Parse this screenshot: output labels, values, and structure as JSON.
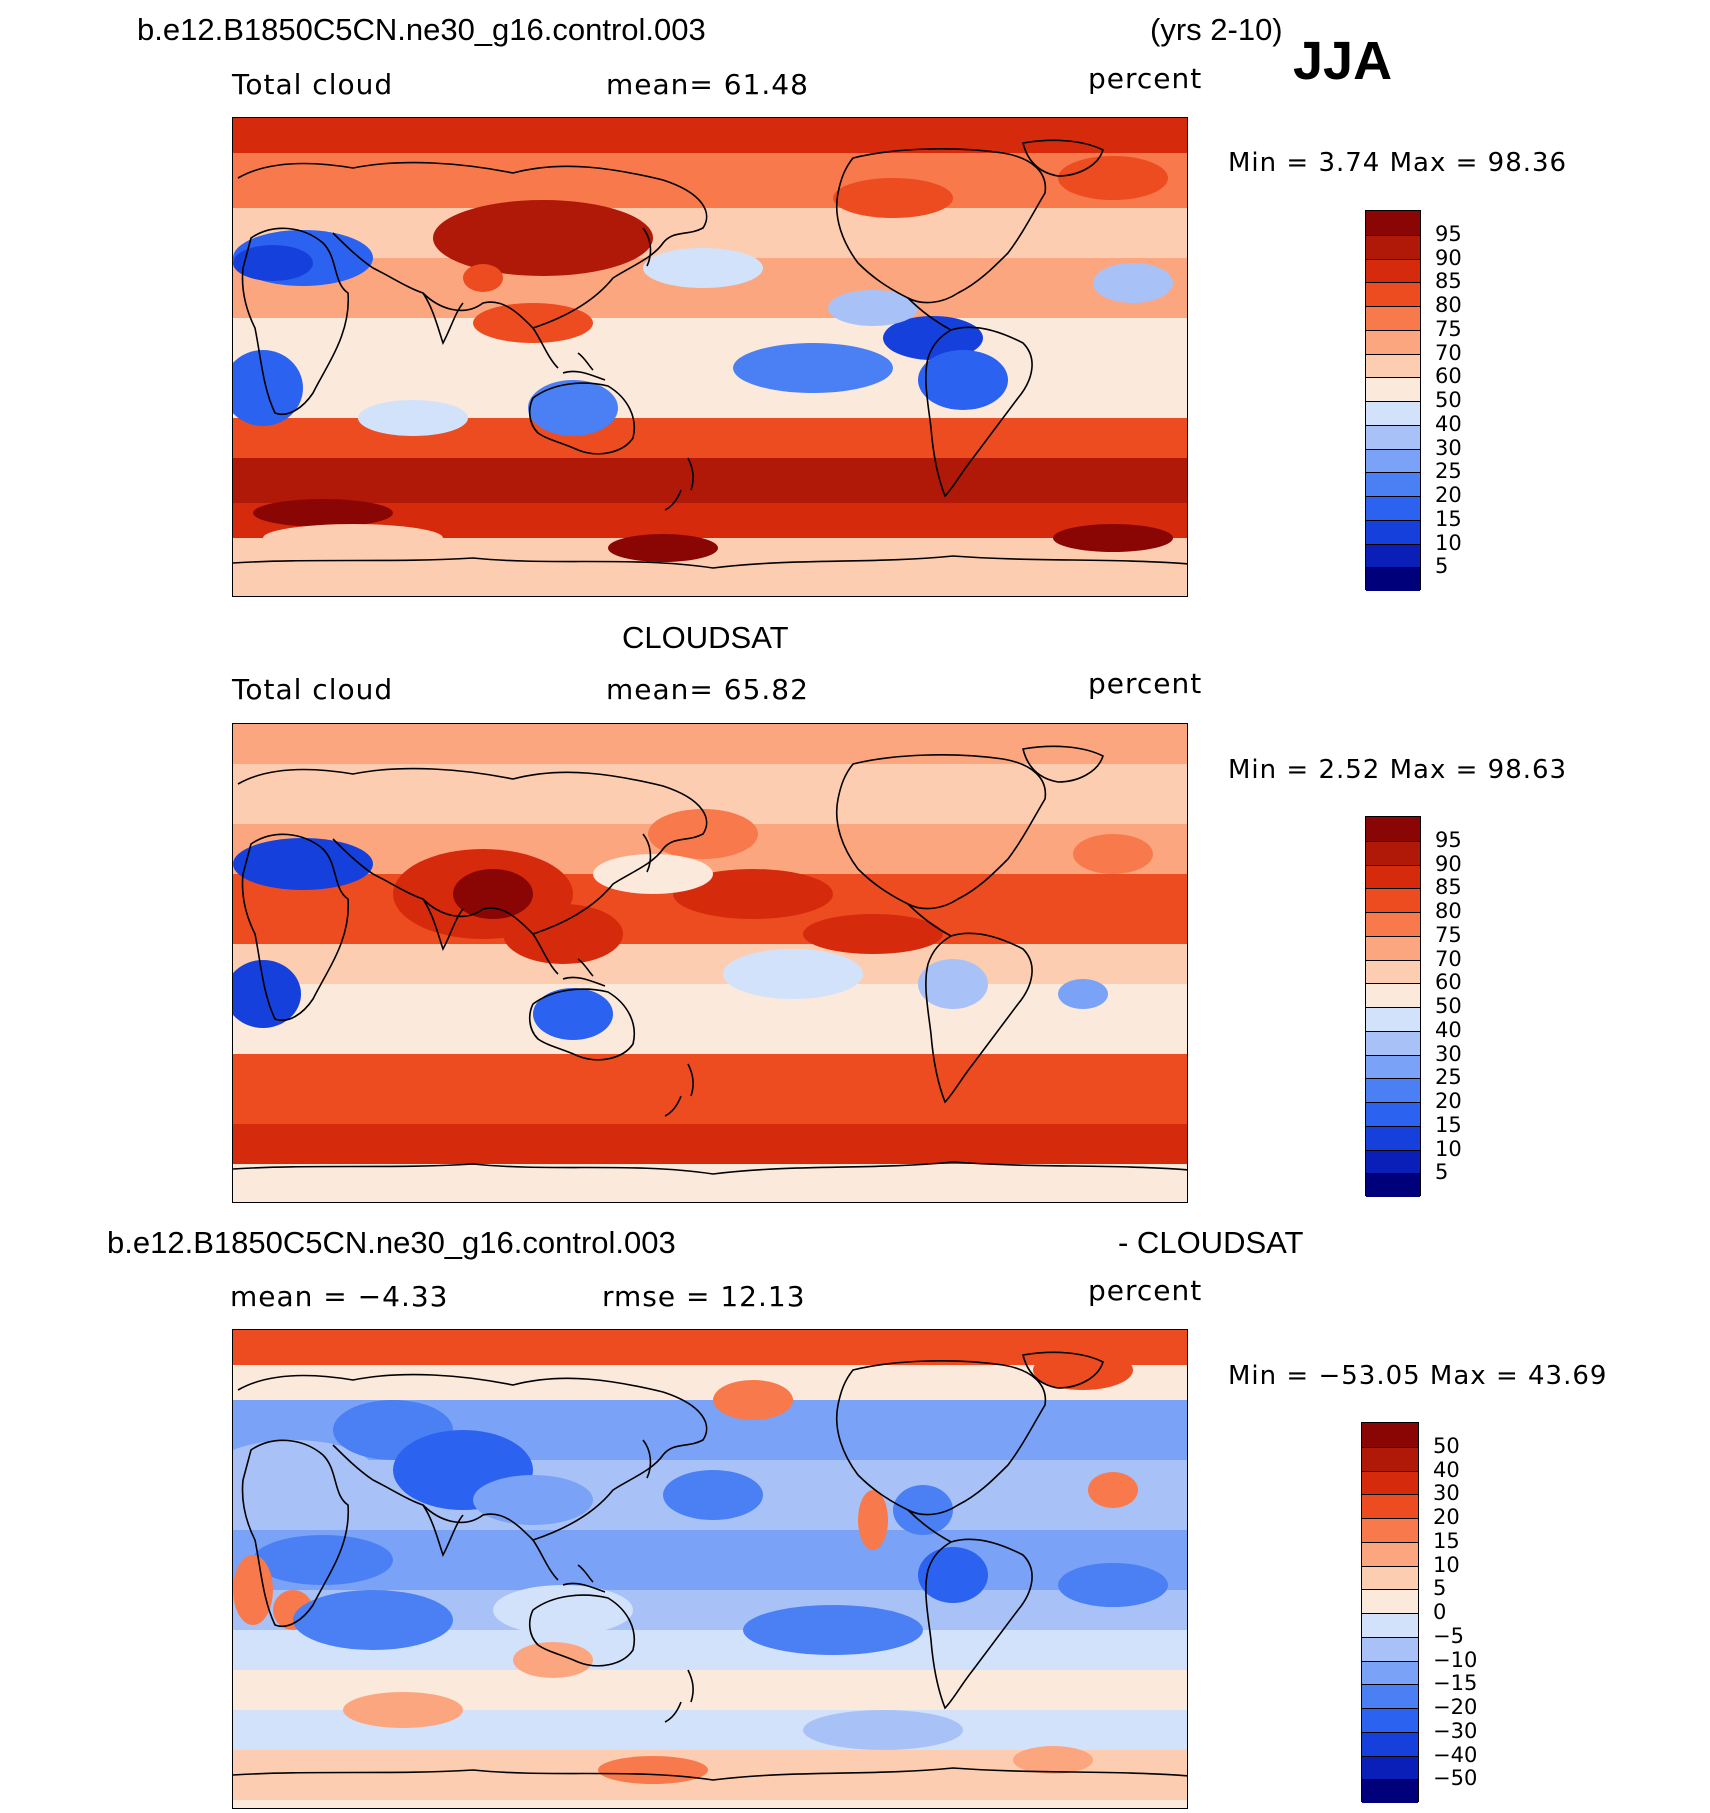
{
  "figure": {
    "case_name": "b.e12.B1850C5CN.ne30_g16.control.003",
    "years": "(yrs 2-10)",
    "season": "JJA"
  },
  "panels": [
    {
      "id": "model",
      "title": "",
      "left_label": "Total cloud",
      "mid_label": "mean=   61.48",
      "right_label": "percent",
      "minmax": "Min =     3.74  Max =    98.36",
      "colorbar": [
        "95",
        "90",
        "85",
        "80",
        "75",
        "70",
        "60",
        "50",
        "40",
        "30",
        "25",
        "20",
        "15",
        "10",
        "5"
      ]
    },
    {
      "id": "obs",
      "title": "CLOUDSAT",
      "left_label": "Total cloud",
      "mid_label": "mean=   65.82",
      "right_label": "percent",
      "minmax": "Min =     2.52  Max =    98.63",
      "colorbar": [
        "95",
        "90",
        "85",
        "80",
        "75",
        "70",
        "60",
        "50",
        "40",
        "30",
        "25",
        "20",
        "15",
        "10",
        "5"
      ]
    },
    {
      "id": "diff",
      "title_left": "b.e12.B1850C5CN.ne30_g16.control.003",
      "title_right": "- CLOUDSAT",
      "left_label": "mean  =    −4.33",
      "mid_label": "rmse  =    12.13",
      "right_label": "percent",
      "minmax": "Min  =  −53.05  Max  =    43.69",
      "colorbar": [
        "50",
        "40",
        "30",
        "20",
        "15",
        "10",
        "5",
        "0",
        "−5",
        "−10",
        "−15",
        "−20",
        "−30",
        "−40",
        "−50"
      ]
    }
  ],
  "colors": {
    "palette": [
      "#00007a",
      "#0a1fb8",
      "#1640dc",
      "#2c62f0",
      "#4a80f4",
      "#7aa2f6",
      "#a8c2f8",
      "#d3e2fb",
      "#fbe9dc",
      "#fccdb0",
      "#fca680",
      "#f7794c",
      "#ec4c1f",
      "#d62a0c",
      "#b01808",
      "#8a0605"
    ],
    "coast": "#000000"
  }
}
